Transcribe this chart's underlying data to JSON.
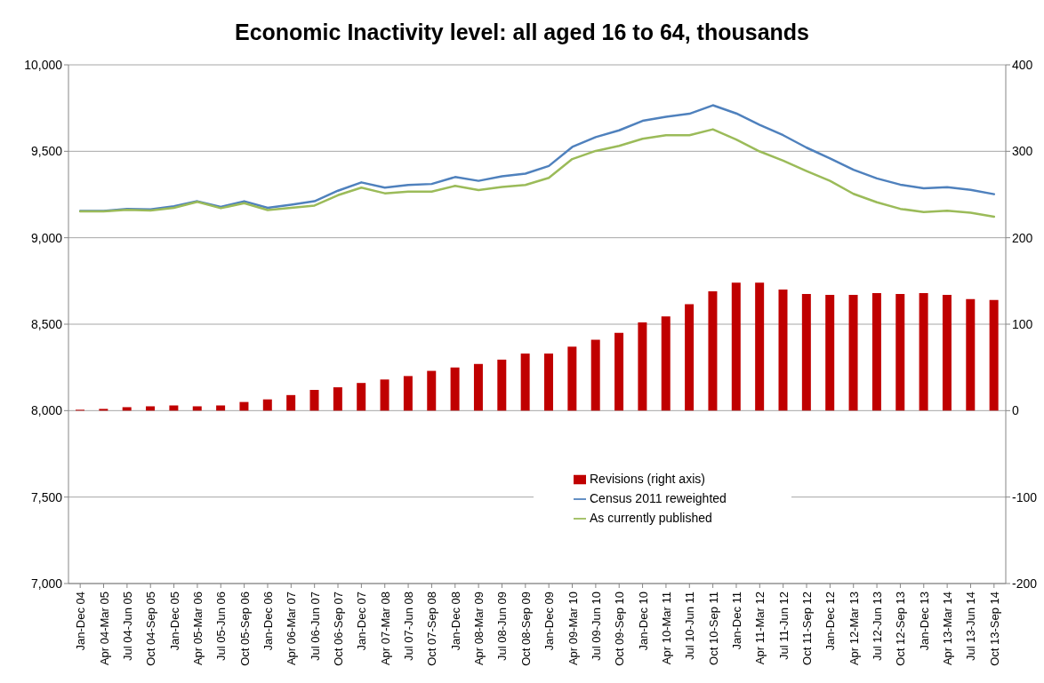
{
  "chart_data": {
    "type": "line",
    "title": "Economic Inactivity level: all aged 16 to 64, thousands",
    "categories": [
      "Jan-Dec 04",
      "Apr 04-Mar 05",
      "Jul 04-Jun 05",
      "Oct 04-Sep 05",
      "Jan-Dec 05",
      "Apr 05-Mar 06",
      "Jul 05-Jun 06",
      "Oct 05-Sep 06",
      "Jan-Dec 06",
      "Apr 06-Mar 07",
      "Jul 06-Jun 07",
      "Oct 06-Sep 07",
      "Jan-Dec 07",
      "Apr 07-Mar 08",
      "Jul 07-Jun 08",
      "Oct 07-Sep 08",
      "Jan-Dec 08",
      "Apr 08-Mar 09",
      "Jul 08-Jun 09",
      "Oct 08-Sep 09",
      "Jan-Dec 09",
      "Apr 09-Mar 10",
      "Jul 09-Jun 10",
      "Oct 09-Sep 10",
      "Jan-Dec 10",
      "Apr 10-Mar 11",
      "Jul 10-Jun 11",
      "Oct 10-Sep 11",
      "Jan-Dec 11",
      "Apr 11-Mar 12",
      "Jul 11-Jun 12",
      "Oct 11-Sep 12",
      "Jan-Dec 12",
      "Apr 12-Mar 13",
      "Jul 12-Jun 13",
      "Oct 12-Sep 13",
      "Jan-Dec 13",
      "Apr 13-Mar 14",
      "Jul 13-Jun 14",
      "Oct 13-Sep 14"
    ],
    "series": [
      {
        "name": "Revisions (right axis)",
        "type": "bar",
        "axis": "y2",
        "color": "#c00000",
        "values": [
          1,
          2,
          4,
          5,
          6,
          5,
          6,
          10,
          13,
          18,
          24,
          27,
          32,
          36,
          40,
          46,
          50,
          54,
          59,
          66,
          66,
          74,
          82,
          90,
          102,
          109,
          123,
          138,
          148,
          148,
          140,
          135,
          134,
          134,
          136,
          135,
          136,
          134,
          129,
          128
        ]
      },
      {
        "name": "Census 2011 reweighted",
        "color": "#4f81bd",
        "values": [
          9155,
          9155,
          9167,
          9164,
          9182,
          9211,
          9178,
          9211,
          9173,
          9191,
          9211,
          9272,
          9320,
          9290,
          9305,
          9311,
          9351,
          9329,
          9355,
          9371,
          9415,
          9525,
          9582,
          9621,
          9676,
          9700,
          9717,
          9766,
          9719,
          9653,
          9593,
          9521,
          9459,
          9393,
          9343,
          9307,
          9286,
          9292,
          9277,
          9252
        ]
      },
      {
        "name": "As currently published",
        "color": "#9bbb59",
        "values": [
          9153,
          9153,
          9162,
          9158,
          9173,
          9208,
          9171,
          9200,
          9160,
          9173,
          9186,
          9246,
          9290,
          9257,
          9267,
          9267,
          9300,
          9276,
          9294,
          9305,
          9346,
          9455,
          9502,
          9531,
          9572,
          9593,
          9593,
          9627,
          9568,
          9499,
          9446,
          9386,
          9329,
          9254,
          9205,
          9167,
          9149,
          9156,
          9145,
          9122
        ]
      }
    ],
    "ylim": [
      7000,
      10000
    ],
    "yticks": [
      {
        "value": 7000,
        "label": "7,000"
      },
      {
        "value": 7500,
        "label": "7,500"
      },
      {
        "value": 8000,
        "label": "8,000"
      },
      {
        "value": 8500,
        "label": "8,500"
      },
      {
        "value": 9000,
        "label": "9,000"
      },
      {
        "value": 9500,
        "label": "9,500"
      },
      {
        "value": 10000,
        "label": "10,000"
      }
    ],
    "y2lim": [
      -200,
      400
    ],
    "y2ticks": [
      -200,
      -100,
      0,
      100,
      200,
      300,
      400
    ],
    "grid": "y",
    "legend": "bottom"
  }
}
